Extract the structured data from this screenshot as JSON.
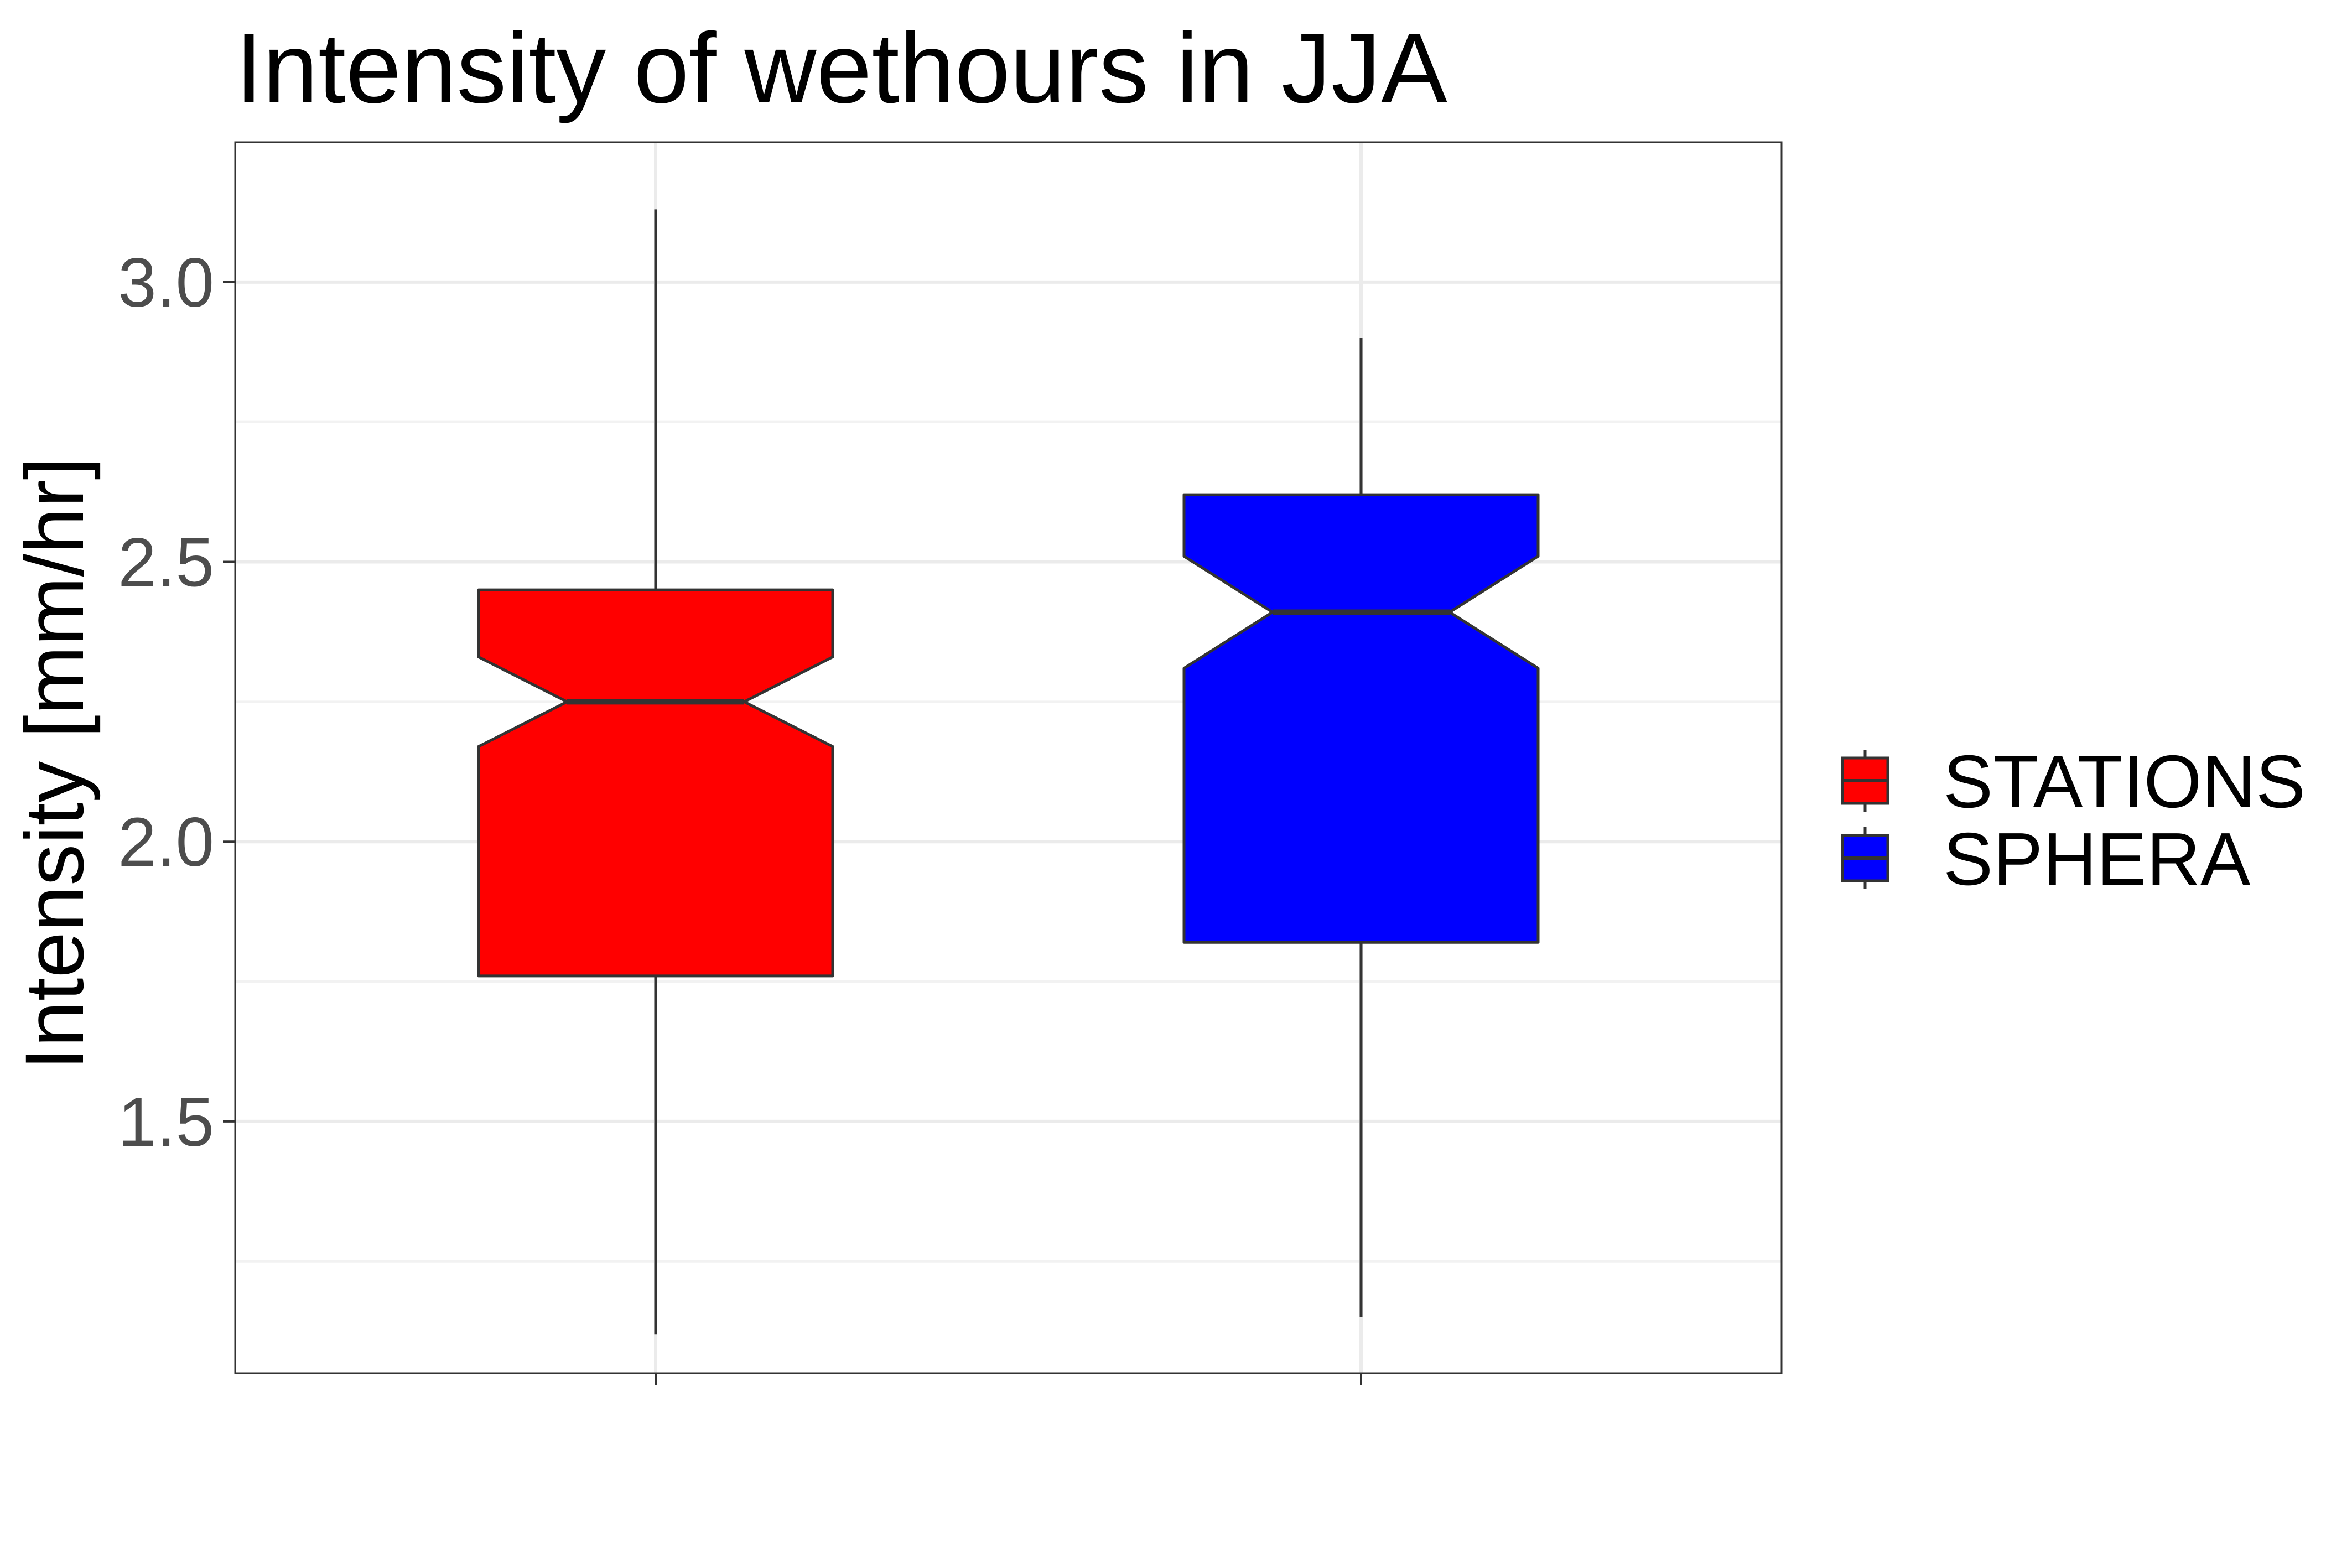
{
  "chart_data": {
    "type": "boxplot",
    "title": "Intensity of wethours in JJA",
    "xlabel": "",
    "ylabel": "Intensity [mm/hr]",
    "ylim": [
      1.05,
      3.25
    ],
    "y_ticks": [
      1.5,
      2.0,
      2.5,
      3.0
    ],
    "y_tick_labels": [
      "1.5",
      "2.0",
      "2.5",
      "3.0"
    ],
    "y_minor_ticks": [
      1.25,
      1.75,
      2.25,
      2.75
    ],
    "notched": true,
    "grid": true,
    "legend_position": "right",
    "series": [
      {
        "name": "STATIONS",
        "color": "#ff0000",
        "whisker_low": 1.12,
        "q1": 1.76,
        "notch_low": 2.17,
        "median": 2.25,
        "notch_high": 2.33,
        "q3": 2.45,
        "whisker_high": 3.13
      },
      {
        "name": "SPHERA",
        "color": "#0000ff",
        "whisker_low": 1.15,
        "q1": 1.82,
        "notch_low": 2.31,
        "median": 2.41,
        "notch_high": 2.51,
        "q3": 2.62,
        "whisker_high": 2.9
      }
    ]
  }
}
